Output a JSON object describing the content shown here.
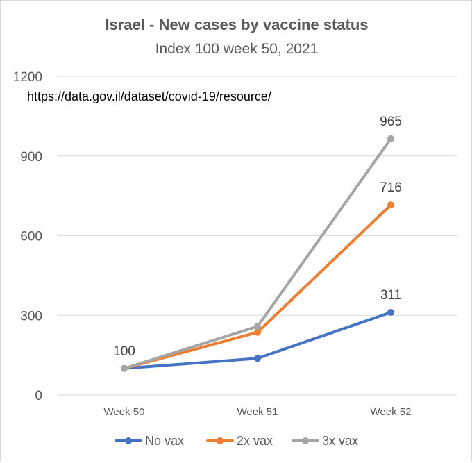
{
  "chart_data": {
    "type": "line",
    "title": "Israel - New cases by vaccine status",
    "subtitle": "Index 100 week 50, 2021",
    "annotation": "https://data.gov.il/dataset/covid-19/resource/",
    "categories": [
      "Week 50",
      "Week 51",
      "Week 52"
    ],
    "ylim": [
      0,
      1200
    ],
    "yticks": [
      0,
      300,
      600,
      900,
      1200
    ],
    "grid": true,
    "legend_position": "bottom",
    "series": [
      {
        "name": "No vax",
        "color": "#4472c4",
        "values": [
          100,
          138,
          311
        ],
        "labels": [
          "",
          "",
          "311"
        ]
      },
      {
        "name": "2x vax",
        "color": "#ed7d31",
        "values": [
          100,
          236,
          716
        ],
        "labels": [
          "",
          "",
          "716"
        ]
      },
      {
        "name": "3x vax",
        "color": "#a5a5a5",
        "values": [
          100,
          258,
          965
        ],
        "labels": [
          "100",
          "",
          "965"
        ]
      }
    ]
  }
}
